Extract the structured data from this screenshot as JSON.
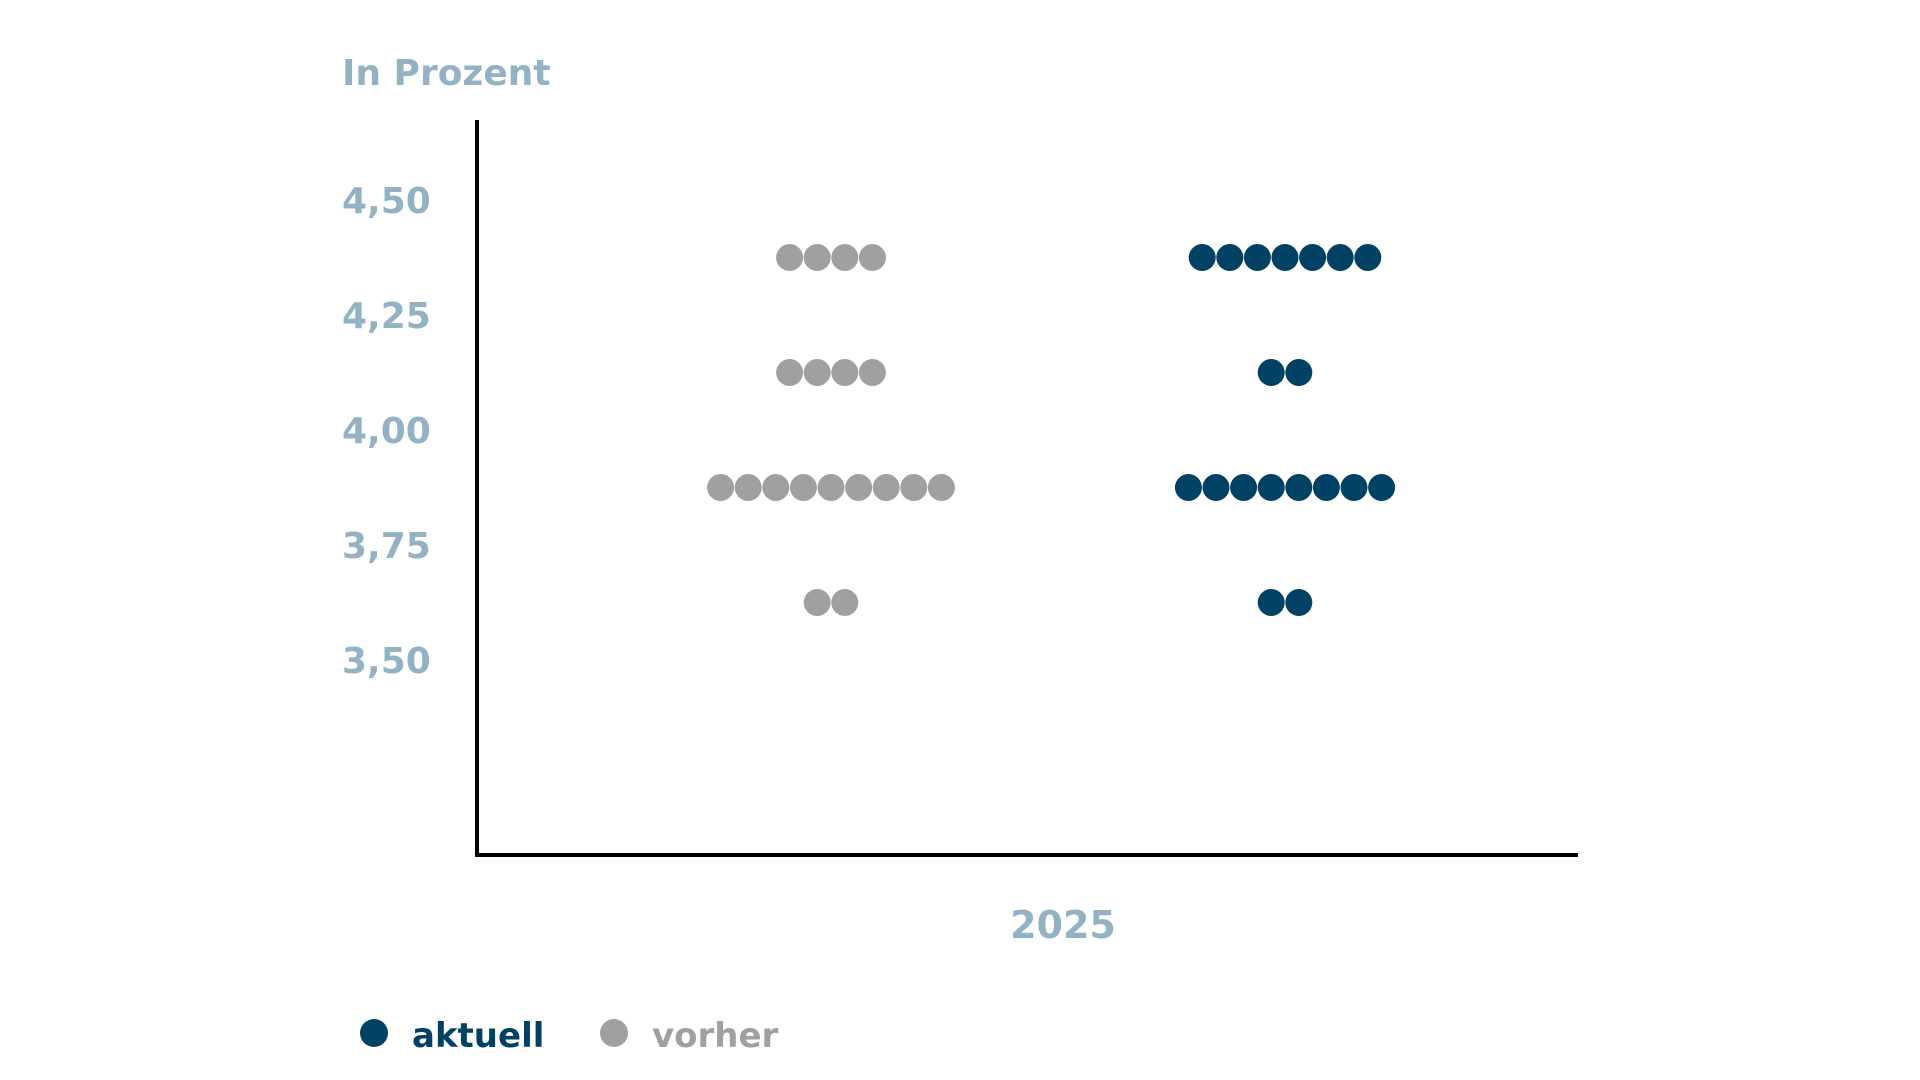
{
  "chart_data": {
    "type": "scatter",
    "subtype": "dot-plot",
    "title": "",
    "ylabel": "In Prozent",
    "xlabel": "",
    "categories": [
      "2025"
    ],
    "y_ticks": [
      "4,50",
      "4,25",
      "4,00",
      "3,75",
      "3,50"
    ],
    "y_tick_values": [
      4.5,
      4.25,
      4.0,
      3.75,
      3.5
    ],
    "ylim": [
      3.0,
      4.65
    ],
    "grid": false,
    "legend_position": "bottom-left",
    "series": [
      {
        "name": "vorher",
        "color": "#a0a0a0",
        "points": [
          {
            "y": 4.375,
            "count": 4
          },
          {
            "y": 4.125,
            "count": 4
          },
          {
            "y": 3.875,
            "count": 9
          },
          {
            "y": 3.625,
            "count": 2
          }
        ]
      },
      {
        "name": "aktuell",
        "color": "#004164",
        "points": [
          {
            "y": 4.375,
            "count": 7
          },
          {
            "y": 4.125,
            "count": 2
          },
          {
            "y": 3.875,
            "count": 8
          },
          {
            "y": 3.625,
            "count": 2
          }
        ]
      }
    ]
  },
  "legend": {
    "items": [
      {
        "label": "aktuell",
        "color": "#004164"
      },
      {
        "label": "vorher",
        "color": "#a0a0a0"
      }
    ]
  }
}
